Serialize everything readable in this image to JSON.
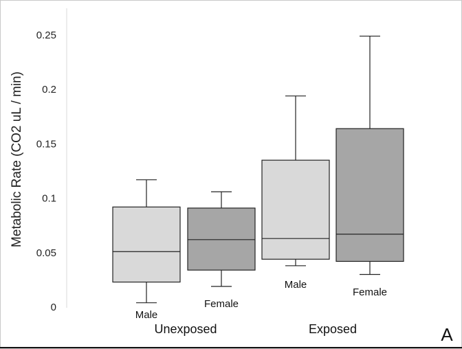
{
  "chart_data": {
    "type": "box",
    "ylabel": "Metabolic Rate (CO2 uL / min)",
    "yticks": [
      "0",
      "0.05",
      "0.1",
      "0.15",
      "0.2",
      "0.25"
    ],
    "ylim": [
      0,
      0.25
    ],
    "grid": false,
    "groups": [
      {
        "label": "Unexposed",
        "boxes": [
          0,
          1
        ]
      },
      {
        "label": "Exposed",
        "boxes": [
          2,
          3
        ]
      }
    ],
    "boxes": [
      {
        "label": "Male",
        "min": 0.004,
        "q1": 0.023,
        "median": 0.051,
        "q3": 0.092,
        "max": 0.117,
        "color": "#d9d9d9"
      },
      {
        "label": "Female",
        "min": 0.019,
        "q1": 0.034,
        "median": 0.062,
        "q3": 0.091,
        "max": 0.106,
        "color": "#a6a6a6"
      },
      {
        "label": "Male",
        "min": 0.038,
        "q1": 0.044,
        "median": 0.063,
        "q3": 0.135,
        "max": 0.194,
        "color": "#d9d9d9"
      },
      {
        "label": "Female",
        "min": 0.03,
        "q1": 0.042,
        "median": 0.067,
        "q3": 0.164,
        "max": 0.249,
        "color": "#a6a6a6"
      }
    ],
    "panel_label": "A"
  }
}
